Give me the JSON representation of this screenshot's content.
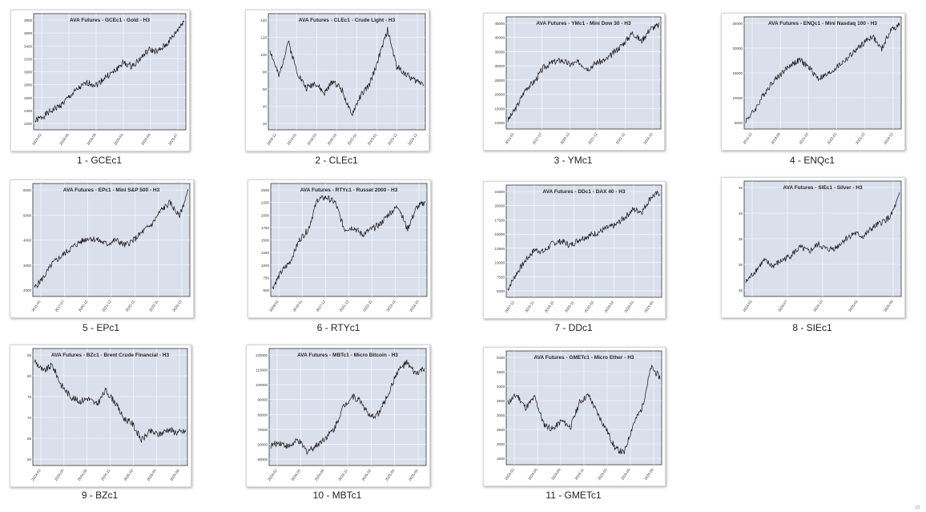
{
  "theme": {
    "plot_bg": "#d9dfeb",
    "line": "#111111",
    "grid": "#ffffff",
    "frame": "#333333"
  },
  "tiles": [
    {
      "caption": "1 - GCEc1",
      "title": "AVA Futures - GCEc1 - Gold - H3",
      "yticks": [
        "3800",
        "3600",
        "3400",
        "3200",
        "3000",
        "2800",
        "2600",
        "2400",
        "2200"
      ],
      "xticks": [
        "2024-02",
        "2024-06",
        "2024-09",
        "2025-01",
        "2025-04",
        "2025-07"
      ]
    },
    {
      "caption": "2 - CLEc1",
      "title": "AVA Futures - CLEc1 - Crude Light - H3",
      "yticks": [
        "140",
        "120",
        "100",
        "80",
        "60",
        "40",
        "20"
      ],
      "xticks": [
        "2009-12",
        "2014-01",
        "2016-03",
        "2020-02",
        "2022-01",
        "2023-01",
        "2023-12",
        "2024-12"
      ]
    },
    {
      "caption": "3 - YMc1",
      "title": "AVA Futures - YMc1 - Mini Dow 30 - H3",
      "yticks": [
        "45000",
        "40000",
        "35000",
        "30000",
        "25000",
        "20000",
        "15000",
        "10000"
      ],
      "xticks": [
        "2011-01",
        "2017-07",
        "2020-12",
        "2021-12",
        "2022-11",
        "2024-10"
      ]
    },
    {
      "caption": "4 - ENQc1",
      "title": "AVA Futures - ENQc1 - Mini Nasdaq 100 - H3",
      "yticks": [
        "25000",
        "20000",
        "15000",
        "10000",
        "5000"
      ],
      "xticks": [
        "2011-12",
        "2019-06",
        "2021-02",
        "2022-01",
        "2023-12",
        "2024-12"
      ]
    },
    {
      "caption": "5 - EPc1",
      "title": "AVA Futures - EPc1 - Mini S&P 500 - H3",
      "yticks": [
        "6000",
        "5000",
        "4000",
        "3000",
        "2000"
      ],
      "xticks": [
        "2011-01",
        "2017-07",
        "2020-12",
        "2021-12",
        "2022-11",
        "2023-11",
        "2024-10"
      ]
    },
    {
      "caption": "6 - RTYc1",
      "title": "AVA Futures - RTYc1 - Russel 2000 - H3",
      "yticks": [
        "2500",
        "2250",
        "2000",
        "1750",
        "1500",
        "1250",
        "1000",
        "750",
        "500"
      ],
      "xticks": [
        "2009-01",
        "2016-11",
        "2017-12",
        "2021-12",
        "2022-11",
        "2023-11",
        "2024-10"
      ]
    },
    {
      "caption": "7 - DDc1",
      "title": "AVA Futures - DDc1 - DAX 40 - H3",
      "yticks": [
        "22500",
        "20000",
        "17500",
        "15000",
        "12500",
        "10000",
        "7500",
        "5000"
      ],
      "xticks": [
        "2007-12",
        "2015-11",
        "2019-10",
        "2020-11",
        "2022-02",
        "2023-02",
        "2024-03",
        "2025-05"
      ]
    },
    {
      "caption": "8 - SIEc1",
      "title": "AVA Futures - SIEc1 - Silver - H3",
      "yticks": [
        "45",
        "40",
        "35",
        "30",
        "25"
      ],
      "xticks": [
        "2024-02",
        "2024-07",
        "2024-10",
        "2025-02",
        "2025-06"
      ]
    },
    {
      "caption": "9 - BZc1",
      "title": "AVA Futures - BZc1 - Brent Crude Financial - H3",
      "yticks": [
        "85",
        "80",
        "75",
        "70",
        "65",
        "60"
      ],
      "xticks": [
        "2024-02",
        "2024-05",
        "2024-08",
        "2024-11",
        "2025-02",
        "2025-05",
        "2025-08"
      ]
    },
    {
      "caption": "10 - MBTc1",
      "title": "AVA Futures - MBTc1 - Micro Bitcoin - H3",
      "yticks": [
        "120000",
        "110000",
        "100000",
        "90000",
        "80000",
        "70000",
        "60000",
        "50000"
      ],
      "xticks": [
        "2024-02",
        "2024-05",
        "2024-08",
        "2024-11",
        "2025-02",
        "2025-05",
        "2025-08"
      ]
    },
    {
      "caption": "11 - GMETc1",
      "title": "AVA Futures - GMETc1 - Micro Ether - H3",
      "yticks": [
        "5000",
        "4500",
        "4000",
        "3500",
        "3000",
        "2500",
        "2000",
        "1500"
      ],
      "xticks": [
        "2024-02",
        "2024-05",
        "2024-08",
        "2024-11",
        "2025-02",
        "2025-05",
        "2025-08"
      ]
    }
  ],
  "corner_mark": "⊡"
}
